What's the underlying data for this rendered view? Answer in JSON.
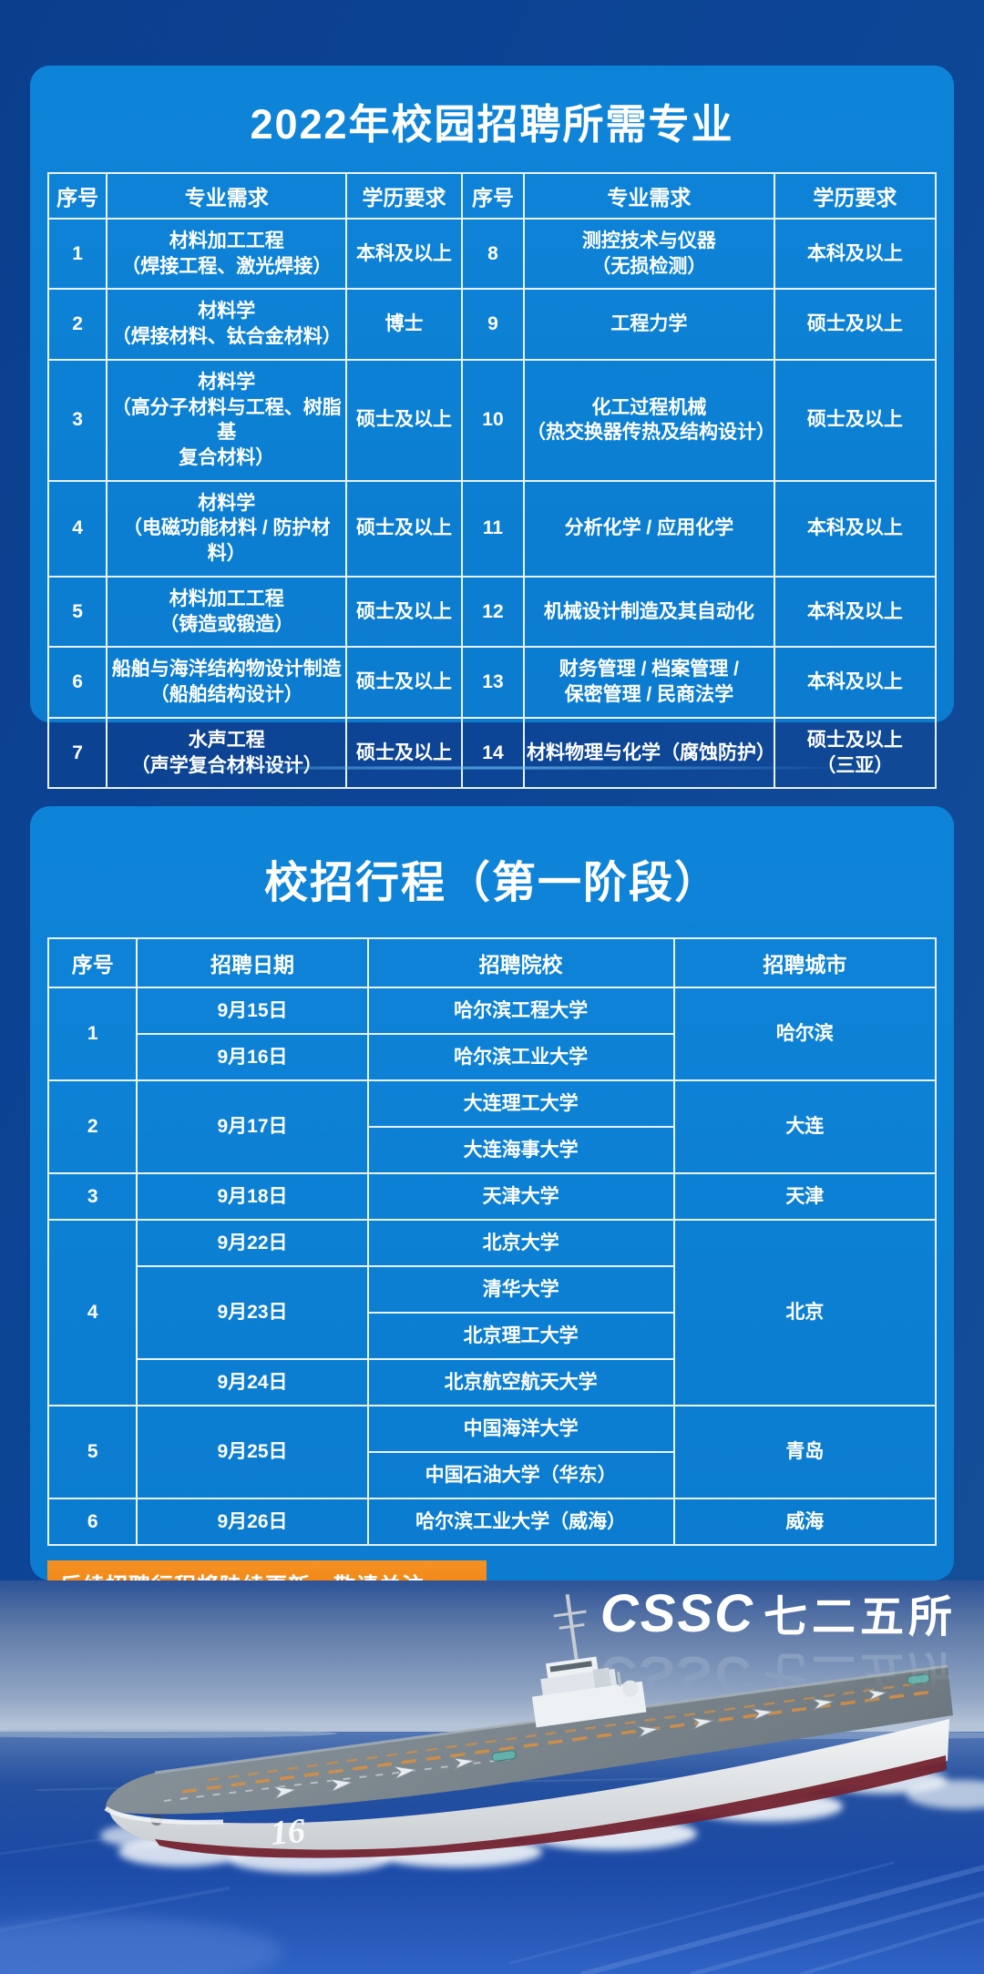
{
  "page": {
    "background_navy": "#0d4596",
    "panel_blue": "#0c80d4",
    "notice_orange": "#ee860f",
    "hull_stripe_maroon": "#73232f"
  },
  "majors": {
    "title": "2022年校园招聘所需专业",
    "table": {
      "header": [
        "序号",
        "专业需求",
        "学历要求",
        "序号",
        "专业需求",
        "学历要求"
      ],
      "rows": [
        [
          {
            "t": "1"
          },
          {
            "t": "材料加工工程\n（焊接工程、激光焊接）"
          },
          {
            "t": "本科及以上"
          },
          {
            "t": "8"
          },
          {
            "t": "测控技术与仪器\n（无损检测）"
          },
          {
            "t": "本科及以上"
          }
        ],
        [
          {
            "t": "2"
          },
          {
            "t": "材料学\n（焊接材料、钛合金材料）"
          },
          {
            "t": "博士"
          },
          {
            "t": "9"
          },
          {
            "t": "工程力学"
          },
          {
            "t": "硕士及以上"
          }
        ],
        [
          {
            "t": "3"
          },
          {
            "t": "材料学\n（高分子材料与工程、树脂基\n复合材料）"
          },
          {
            "t": "硕士及以上"
          },
          {
            "t": "10"
          },
          {
            "t": "化工过程机械\n（热交换器传热及结构设计）"
          },
          {
            "t": "硕士及以上"
          }
        ],
        [
          {
            "t": "4"
          },
          {
            "t": "材料学\n（电磁功能材料 / 防护材料）"
          },
          {
            "t": "硕士及以上"
          },
          {
            "t": "11"
          },
          {
            "t": "分析化学 / 应用化学"
          },
          {
            "t": "本科及以上"
          }
        ],
        [
          {
            "t": "5"
          },
          {
            "t": "材料加工工程\n（铸造或锻造）"
          },
          {
            "t": "硕士及以上"
          },
          {
            "t": "12"
          },
          {
            "t": "机械设计制造及其自动化"
          },
          {
            "t": "本科及以上"
          }
        ],
        [
          {
            "t": "6"
          },
          {
            "t": "船舶与海洋结构物设计制造\n（船舶结构设计）"
          },
          {
            "t": "硕士及以上"
          },
          {
            "t": "13"
          },
          {
            "t": "财务管理 / 档案管理 /\n保密管理 / 民商法学"
          },
          {
            "t": "本科及以上"
          }
        ],
        [
          {
            "t": "7"
          },
          {
            "t": "水声工程\n（声学复合材料设计）"
          },
          {
            "t": "硕士及以上"
          },
          {
            "t": "14"
          },
          {
            "t": "材料物理与化学（腐蚀防护）"
          },
          {
            "t": "硕士及以上\n（三亚）"
          }
        ]
      ]
    }
  },
  "schedule": {
    "title": "校招行程（第一阶段）",
    "table": {
      "header": [
        "序号",
        "招聘日期",
        "招聘院校",
        "招聘城市"
      ],
      "rows": [
        [
          {
            "t": "1",
            "rs": 2
          },
          {
            "t": "9月15日"
          },
          {
            "t": "哈尔滨工程大学"
          },
          {
            "t": "哈尔滨",
            "rs": 2
          }
        ],
        [
          {
            "t": "9月16日"
          },
          {
            "t": "哈尔滨工业大学"
          }
        ],
        [
          {
            "t": "2",
            "rs": 2
          },
          {
            "t": "9月17日",
            "rs": 2
          },
          {
            "t": "大连理工大学"
          },
          {
            "t": "大连",
            "rs": 2
          }
        ],
        [
          {
            "t": "大连海事大学"
          }
        ],
        [
          {
            "t": "3"
          },
          {
            "t": "9月18日"
          },
          {
            "t": "天津大学"
          },
          {
            "t": "天津"
          }
        ],
        [
          {
            "t": "4",
            "rs": 4
          },
          {
            "t": "9月22日"
          },
          {
            "t": "北京大学"
          },
          {
            "t": "北京",
            "rs": 4
          }
        ],
        [
          {
            "t": "9月23日",
            "rs": 2
          },
          {
            "t": "清华大学"
          }
        ],
        [
          {
            "t": "北京理工大学"
          }
        ],
        [
          {
            "t": "9月24日"
          },
          {
            "t": "北京航空航天大学"
          }
        ],
        [
          {
            "t": "5",
            "rs": 2
          },
          {
            "t": "9月25日",
            "rs": 2
          },
          {
            "t": "中国海洋大学"
          },
          {
            "t": "青岛",
            "rs": 2
          }
        ],
        [
          {
            "t": "中国石油大学（华东）"
          }
        ],
        [
          {
            "t": "6"
          },
          {
            "t": "9月26日"
          },
          {
            "t": "哈尔滨工业大学（威海）"
          },
          {
            "t": "威海"
          }
        ]
      ]
    },
    "notice": "后续招聘行程将陆续更新，敬请关注......"
  },
  "footer": {
    "logo_cssc": "CSSC",
    "logo_institute": "七二五所",
    "hull_number": "16"
  }
}
